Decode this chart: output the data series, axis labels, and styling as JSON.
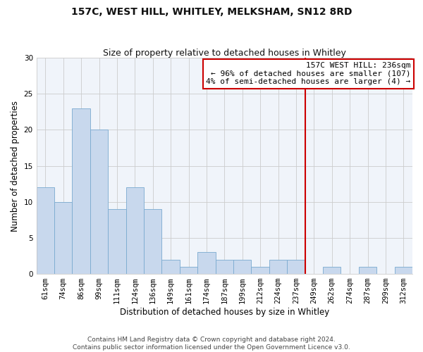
{
  "title": "157C, WEST HILL, WHITLEY, MELKSHAM, SN12 8RD",
  "subtitle": "Size of property relative to detached houses in Whitley",
  "xlabel": "Distribution of detached houses by size in Whitley",
  "ylabel": "Number of detached properties",
  "bar_labels": [
    "61sqm",
    "74sqm",
    "86sqm",
    "99sqm",
    "111sqm",
    "124sqm",
    "136sqm",
    "149sqm",
    "161sqm",
    "174sqm",
    "187sqm",
    "199sqm",
    "212sqm",
    "224sqm",
    "237sqm",
    "249sqm",
    "262sqm",
    "274sqm",
    "287sqm",
    "299sqm",
    "312sqm"
  ],
  "bar_values": [
    12,
    10,
    23,
    20,
    9,
    12,
    9,
    2,
    1,
    3,
    2,
    2,
    1,
    2,
    2,
    0,
    1,
    0,
    1,
    0,
    1
  ],
  "bar_color": "#c8d8ed",
  "bar_edge_color": "#7aaad0",
  "bar_linewidth": 0.6,
  "grid_color": "#cccccc",
  "vline_x": 14.5,
  "vline_color": "#cc0000",
  "vline_linewidth": 1.5,
  "annotation_title": "157C WEST HILL: 236sqm",
  "annotation_line1": "← 96% of detached houses are smaller (107)",
  "annotation_line2": "4% of semi-detached houses are larger (4) →",
  "annotation_box_facecolor": "#ffffff",
  "annotation_border_color": "#cc0000",
  "annotation_border_linewidth": 1.5,
  "ylim": [
    0,
    30
  ],
  "yticks": [
    0,
    5,
    10,
    15,
    20,
    25,
    30
  ],
  "footer_line1": "Contains HM Land Registry data © Crown copyright and database right 2024.",
  "footer_line2": "Contains public sector information licensed under the Open Government Licence v3.0.",
  "title_fontsize": 10,
  "subtitle_fontsize": 9,
  "ylabel_fontsize": 8.5,
  "xlabel_fontsize": 8.5,
  "tick_fontsize": 7.5,
  "annotation_fontsize": 8,
  "footer_fontsize": 6.5,
  "bg_color": "#f0f4fa"
}
